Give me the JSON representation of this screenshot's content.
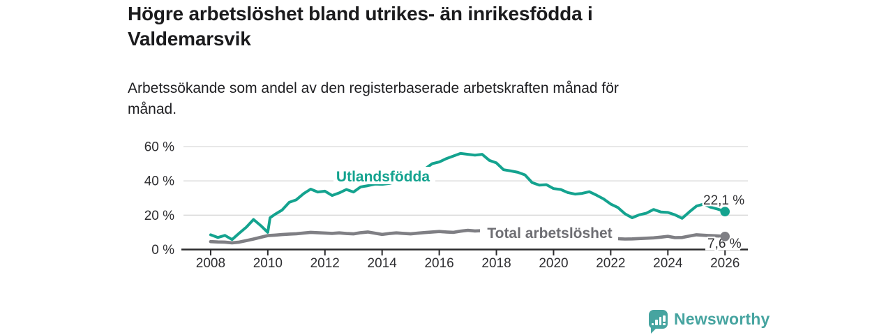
{
  "header": {
    "title_lines": [
      "Högre arbetslöshet bland utrikes- än inrikesfödda i",
      "Valdemarsvik"
    ],
    "subtitle_lines": [
      "Arbetssökande som andel av den registerbaserade arbetskraften månad för",
      "månad."
    ]
  },
  "colors": {
    "teal": "#14a38f",
    "gray": "#7f7f84",
    "gray_label": "#6e6e73",
    "axis": "#2a2a2c",
    "grid": "#d9d9d9",
    "text": "#1b1b1d",
    "logo_teal": "#46a4a0"
  },
  "chart_data": {
    "type": "line",
    "title": "Högre arbetslöshet bland utrikes- än inrikesfödda i Valdemarsvik",
    "subtitle": "Arbetssökande som andel av den registerbaserade arbetskraften månad för månad.",
    "xlabel": "",
    "ylabel": "",
    "xlim": [
      2007.05,
      2026.8
    ],
    "ylim": [
      0,
      60
    ],
    "grid": "horizontal",
    "legend_position": "inline-labels",
    "x_ticks": [
      2008,
      2010,
      2012,
      2014,
      2016,
      2018,
      2020,
      2022,
      2024,
      2026
    ],
    "y_ticks": [
      {
        "value": 60,
        "label": "60 %"
      },
      {
        "value": 40,
        "label": "40 %"
      },
      {
        "value": 20,
        "label": "20 %"
      },
      {
        "value": 0,
        "label": "0 %"
      }
    ],
    "series": [
      {
        "name": "Utlandsfödda",
        "color": "#14a38f",
        "label_color": "#14a38f",
        "end_label": "22,1 %",
        "end_value": 22.1,
        "x": [
          2008,
          2008.25,
          2008.5,
          2008.75,
          2009,
          2009.25,
          2009.5,
          2009.75,
          2010,
          2010.08,
          2010.25,
          2010.5,
          2010.75,
          2011,
          2011.25,
          2011.5,
          2011.75,
          2012,
          2012.25,
          2012.5,
          2012.75,
          2013,
          2013.25,
          2013.5,
          2013.75,
          2014,
          2014.25,
          2014.5,
          2014.75,
          2015,
          2015.25,
          2015.5,
          2015.75,
          2016,
          2016.25,
          2016.5,
          2016.75,
          2017,
          2017.25,
          2017.5,
          2017.75,
          2018,
          2018.25,
          2018.5,
          2018.75,
          2019,
          2019.25,
          2019.5,
          2019.75,
          2020,
          2020.25,
          2020.5,
          2020.75,
          2021,
          2021.25,
          2021.5,
          2021.75,
          2022,
          2022.25,
          2022.5,
          2022.75,
          2023,
          2023.25,
          2023.5,
          2023.75,
          2024,
          2024.25,
          2024.5,
          2024.75,
          2025,
          2025.25,
          2025.5,
          2025.75,
          2026
        ],
        "values": [
          8.6,
          7.0,
          8.2,
          5.8,
          9.5,
          13.0,
          17.5,
          14.0,
          10.0,
          18.5,
          20.5,
          23.0,
          27.5,
          29.0,
          32.5,
          35.2,
          33.5,
          34.0,
          31.5,
          33.0,
          35.0,
          33.5,
          36.5,
          37.2,
          38.1,
          38.0,
          38.5,
          39.5,
          41.0,
          42.5,
          44.5,
          47.0,
          50.0,
          51.0,
          53.0,
          54.5,
          56.0,
          55.5,
          55.0,
          55.5,
          52.0,
          50.5,
          46.5,
          45.8,
          45.0,
          43.5,
          39.0,
          37.5,
          37.8,
          35.5,
          35.0,
          33.2,
          32.3,
          32.7,
          33.7,
          31.7,
          29.5,
          26.5,
          24.5,
          20.8,
          18.5,
          20.2,
          21.2,
          23.3,
          21.9,
          21.6,
          20.2,
          18.2,
          21.9,
          25.3,
          26.5,
          24.6,
          23.5,
          22.1
        ]
      },
      {
        "name": "Total arbetslöshet",
        "color": "#7f7f84",
        "label_color": "#6e6e73",
        "end_label": "7,6 %",
        "end_value": 7.6,
        "x": [
          2008,
          2008.25,
          2008.5,
          2008.75,
          2009,
          2009.25,
          2009.5,
          2009.75,
          2010,
          2010.25,
          2010.5,
          2010.75,
          2011,
          2011.25,
          2011.5,
          2011.75,
          2012,
          2012.25,
          2012.5,
          2012.75,
          2013,
          2013.25,
          2013.5,
          2013.75,
          2014,
          2014.25,
          2014.5,
          2014.75,
          2015,
          2015.25,
          2015.5,
          2015.75,
          2016,
          2016.25,
          2016.5,
          2016.75,
          2017,
          2017.25,
          2017.5,
          2017.75,
          2018,
          2018.25,
          2018.5,
          2018.75,
          2019,
          2019.25,
          2019.5,
          2019.75,
          2020,
          2020.25,
          2020.5,
          2020.75,
          2021,
          2021.25,
          2021.5,
          2021.75,
          2022,
          2022.25,
          2022.5,
          2022.75,
          2023,
          2023.25,
          2023.5,
          2023.75,
          2024,
          2024.25,
          2024.5,
          2024.75,
          2025,
          2025.25,
          2025.5,
          2025.75,
          2026
        ],
        "values": [
          4.6,
          4.4,
          4.3,
          3.9,
          4.3,
          5.2,
          6.1,
          7.1,
          8.1,
          8.4,
          8.7,
          9.0,
          9.2,
          9.6,
          10.0,
          9.8,
          9.6,
          9.4,
          9.7,
          9.3,
          9.1,
          9.8,
          10.2,
          9.5,
          8.8,
          9.3,
          9.7,
          9.4,
          9.1,
          9.5,
          9.9,
          10.2,
          10.5,
          10.2,
          10.0,
          10.7,
          11.2,
          10.8,
          11.0,
          10.5,
          10.2,
          10.0,
          9.8,
          9.5,
          9.3,
          9.1,
          8.9,
          9.1,
          9.4,
          9.2,
          9.0,
          8.8,
          8.5,
          8.2,
          7.9,
          7.2,
          6.6,
          6.3,
          6.1,
          6.2,
          6.4,
          6.6,
          6.8,
          7.2,
          7.7,
          6.9,
          7.0,
          7.8,
          8.6,
          8.3,
          8.1,
          7.9,
          7.6
        ]
      }
    ]
  },
  "logo": {
    "text": "Newsworthy",
    "icon": "bar-chart-speech-bubble-icon"
  }
}
